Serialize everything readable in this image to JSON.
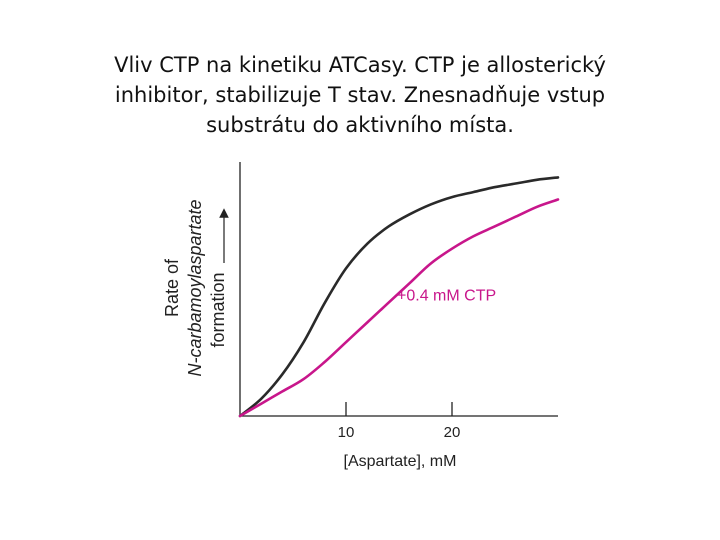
{
  "slide": {
    "title_lines": [
      "Vliv CTP na kinetiku ATCasy. CTP je allosterický",
      "inhibitor, stabilizuje T stav. Znesnadňuje vstup",
      "substrátu do aktivního místa."
    ]
  },
  "chart_data": {
    "type": "line",
    "title": "",
    "xlabel": "[Aspartate], mM",
    "ylabel_lines": [
      "Rate of",
      "N-carbamoylaspartate",
      "formation"
    ],
    "xlim": [
      0,
      30
    ],
    "ylim": [
      0,
      1
    ],
    "xticks": [
      10,
      20
    ],
    "grid": false,
    "series": [
      {
        "name": "",
        "color": "#2a2a2a",
        "x": [
          0,
          2,
          4,
          6,
          8,
          10,
          12,
          14,
          16,
          18,
          20,
          22,
          24,
          26,
          28,
          30
        ],
        "y": [
          0,
          0.07,
          0.17,
          0.3,
          0.46,
          0.6,
          0.7,
          0.77,
          0.82,
          0.86,
          0.89,
          0.91,
          0.93,
          0.945,
          0.96,
          0.97
        ]
      },
      {
        "name": "+0.4 mM CTP",
        "color": "#c8168b",
        "x": [
          0,
          2,
          4,
          6,
          8,
          10,
          12,
          14,
          16,
          18,
          20,
          22,
          24,
          26,
          28,
          30
        ],
        "y": [
          0,
          0.05,
          0.1,
          0.15,
          0.22,
          0.3,
          0.38,
          0.46,
          0.54,
          0.62,
          0.68,
          0.73,
          0.77,
          0.81,
          0.85,
          0.88
        ]
      }
    ],
    "annotations": [
      {
        "text": "+0.4 mM CTP",
        "x": 15,
        "y": 0.47,
        "color": "#c8168b"
      }
    ]
  }
}
